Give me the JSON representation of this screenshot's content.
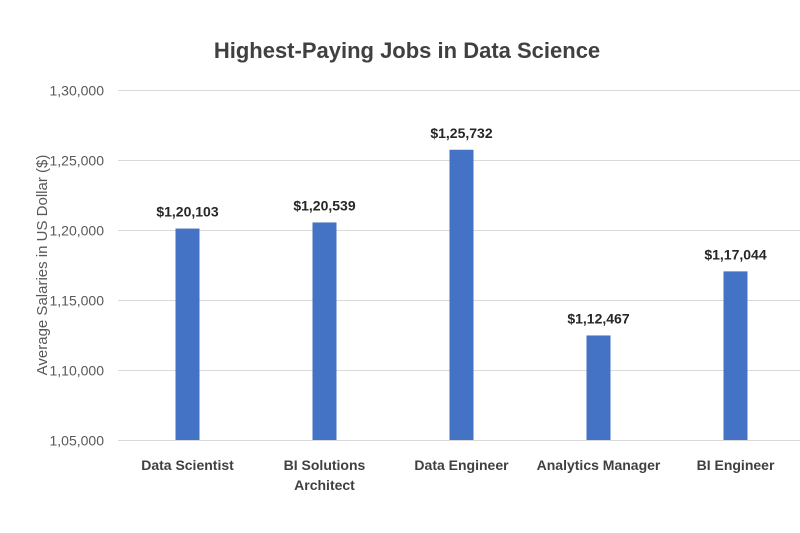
{
  "chart_data": {
    "type": "bar",
    "title": "Highest-Paying Jobs in Data Science",
    "xlabel": "",
    "ylabel": "Average Salaries in US Dollar ($)",
    "categories": [
      "Data Scientist",
      "BI Solutions Architect",
      "Data Engineer",
      "Analytics Manager",
      "BI Engineer"
    ],
    "category_lines": [
      [
        "Data Scientist"
      ],
      [
        "BI Solutions",
        "Architect"
      ],
      [
        "Data Engineer"
      ],
      [
        "Analytics Manager"
      ],
      [
        "BI Engineer"
      ]
    ],
    "values": [
      120103,
      120539,
      125732,
      112467,
      117044
    ],
    "data_labels": [
      "$1,20,103",
      "$1,20,539",
      "$1,25,732",
      "$1,12,467",
      "$1,17,044"
    ],
    "ylim": [
      105000,
      130000
    ],
    "yticks": [
      105000,
      110000,
      115000,
      120000,
      125000,
      130000
    ],
    "ytick_labels": [
      "1,05,000",
      "1,10,000",
      "1,15,000",
      "1,20,000",
      "1,25,000",
      "1,30,000"
    ],
    "grid": true,
    "legend": "none",
    "bar_color": "#4472C4"
  }
}
